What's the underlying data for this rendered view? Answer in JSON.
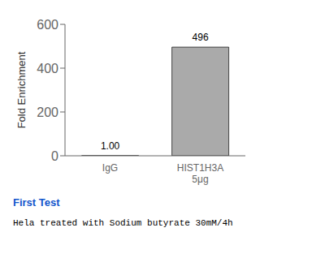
{
  "chart_data": {
    "type": "bar",
    "categories": [
      "IgG",
      "HIST1H3A\n5μg"
    ],
    "values": [
      1.0,
      496
    ],
    "value_labels": [
      "1.00",
      "496"
    ],
    "data_labels": true,
    "ylabel": "Fold Enrichment",
    "ylim": [
      0,
      600
    ],
    "yticks": [
      0,
      200,
      400,
      600
    ],
    "colors": [
      "#ffffff",
      "#aaaaaa"
    ],
    "grid": false,
    "annotations": [
      {
        "text": "First Test",
        "color": "#1155cc"
      },
      {
        "text": "Hela treated with Sodium butyrate 30mM/4h"
      }
    ]
  }
}
